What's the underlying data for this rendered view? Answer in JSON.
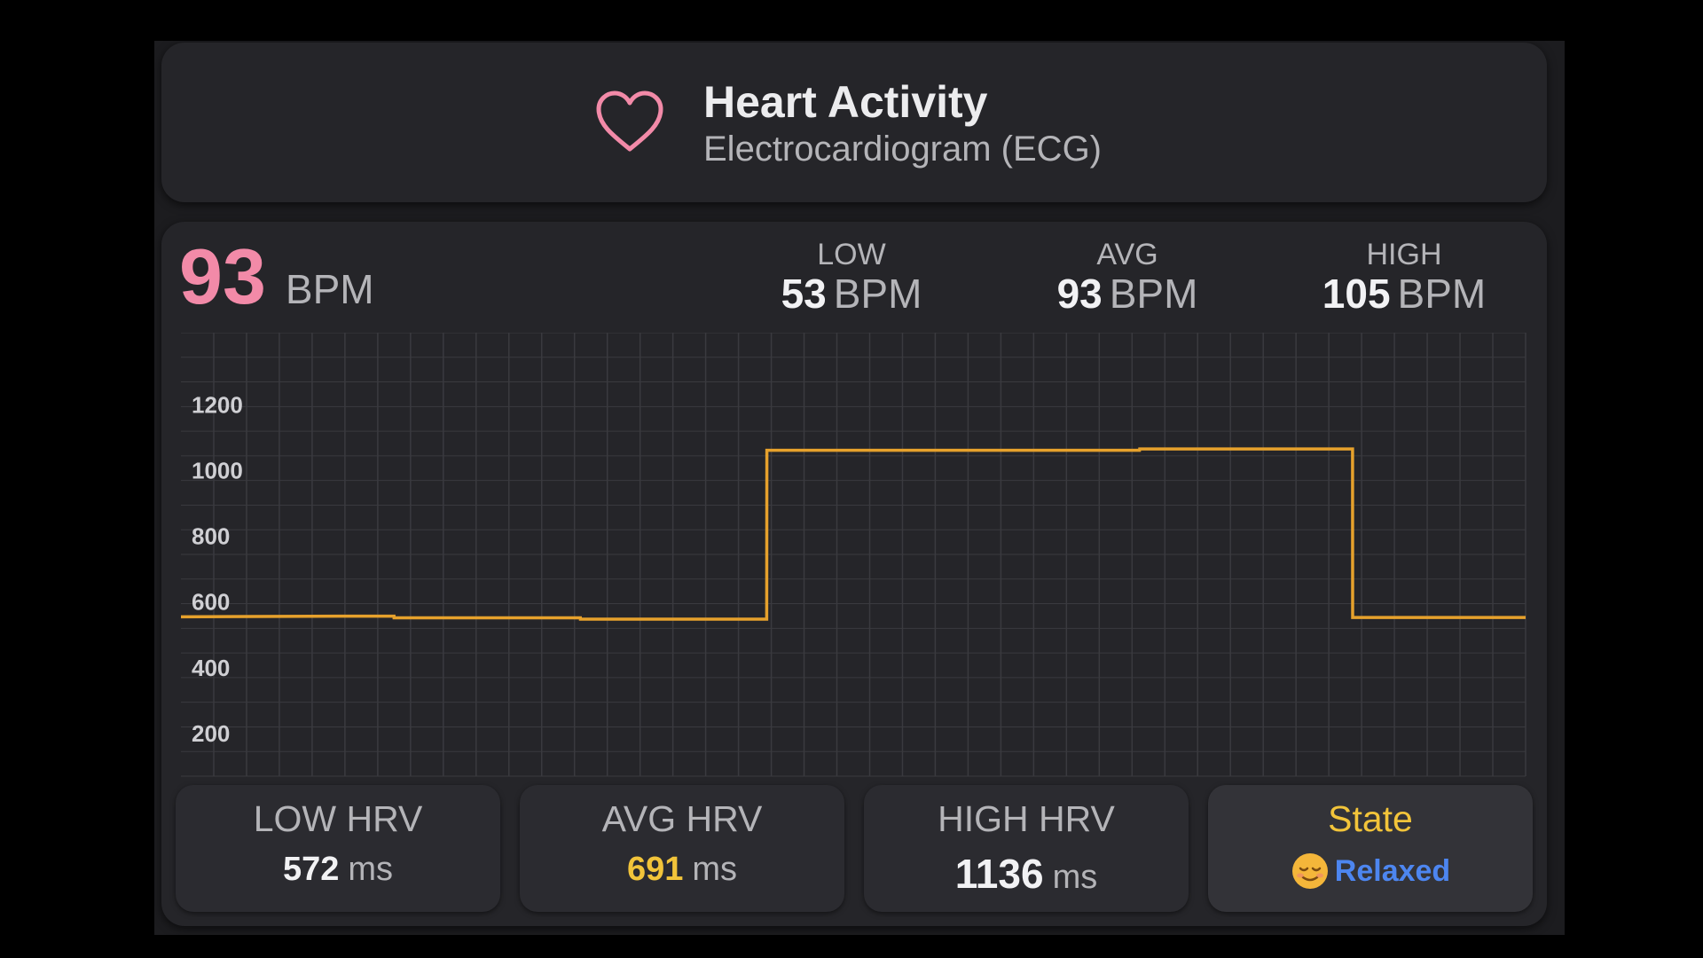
{
  "header": {
    "icon": "heart-icon",
    "title": "Heart Activity",
    "subtitle": "Electrocardiogram (ECG)"
  },
  "current": {
    "value": "93",
    "unit": "BPM"
  },
  "stats": {
    "low": {
      "label": "LOW",
      "value": "53",
      "unit": "BPM"
    },
    "avg": {
      "label": "AVG",
      "value": "93",
      "unit": "BPM"
    },
    "high": {
      "label": "HIGH",
      "value": "105",
      "unit": "BPM"
    }
  },
  "chart_data": {
    "type": "line",
    "step": true,
    "x": [
      0,
      12,
      16,
      16.01,
      30,
      30.01,
      44,
      44.01,
      72,
      72.01,
      88,
      88.01,
      101
    ],
    "y": [
      555,
      557,
      557,
      552,
      552,
      548,
      548,
      1062,
      1062,
      1066,
      1066,
      553,
      553
    ],
    "ylim": [
      70,
      1420
    ],
    "yticks": [
      "200",
      "400",
      "600",
      "800",
      "1000",
      "1200"
    ],
    "ytick_values": [
      200,
      400,
      600,
      800,
      1000,
      1200
    ],
    "grid": true,
    "colors": {
      "line": "#e6a12c",
      "grid": "#3a3a3f",
      "tick": "#cfcfd3"
    }
  },
  "tiles": {
    "low_hrv": {
      "label": "LOW HRV",
      "value": "572",
      "unit": "ms"
    },
    "avg_hrv": {
      "label": "AVG HRV",
      "value": "691",
      "unit": "ms"
    },
    "high_hrv": {
      "label": "HIGH HRV",
      "value": "1136",
      "unit": "ms"
    },
    "state": {
      "label": "State",
      "icon": "relaxed-face-icon",
      "value": "Relaxed"
    }
  },
  "colors": {
    "accent_pink": "#f28aa8",
    "accent_yellow": "#f2c43a",
    "accent_blue": "#4d86f0",
    "card_bg": "#252529"
  }
}
